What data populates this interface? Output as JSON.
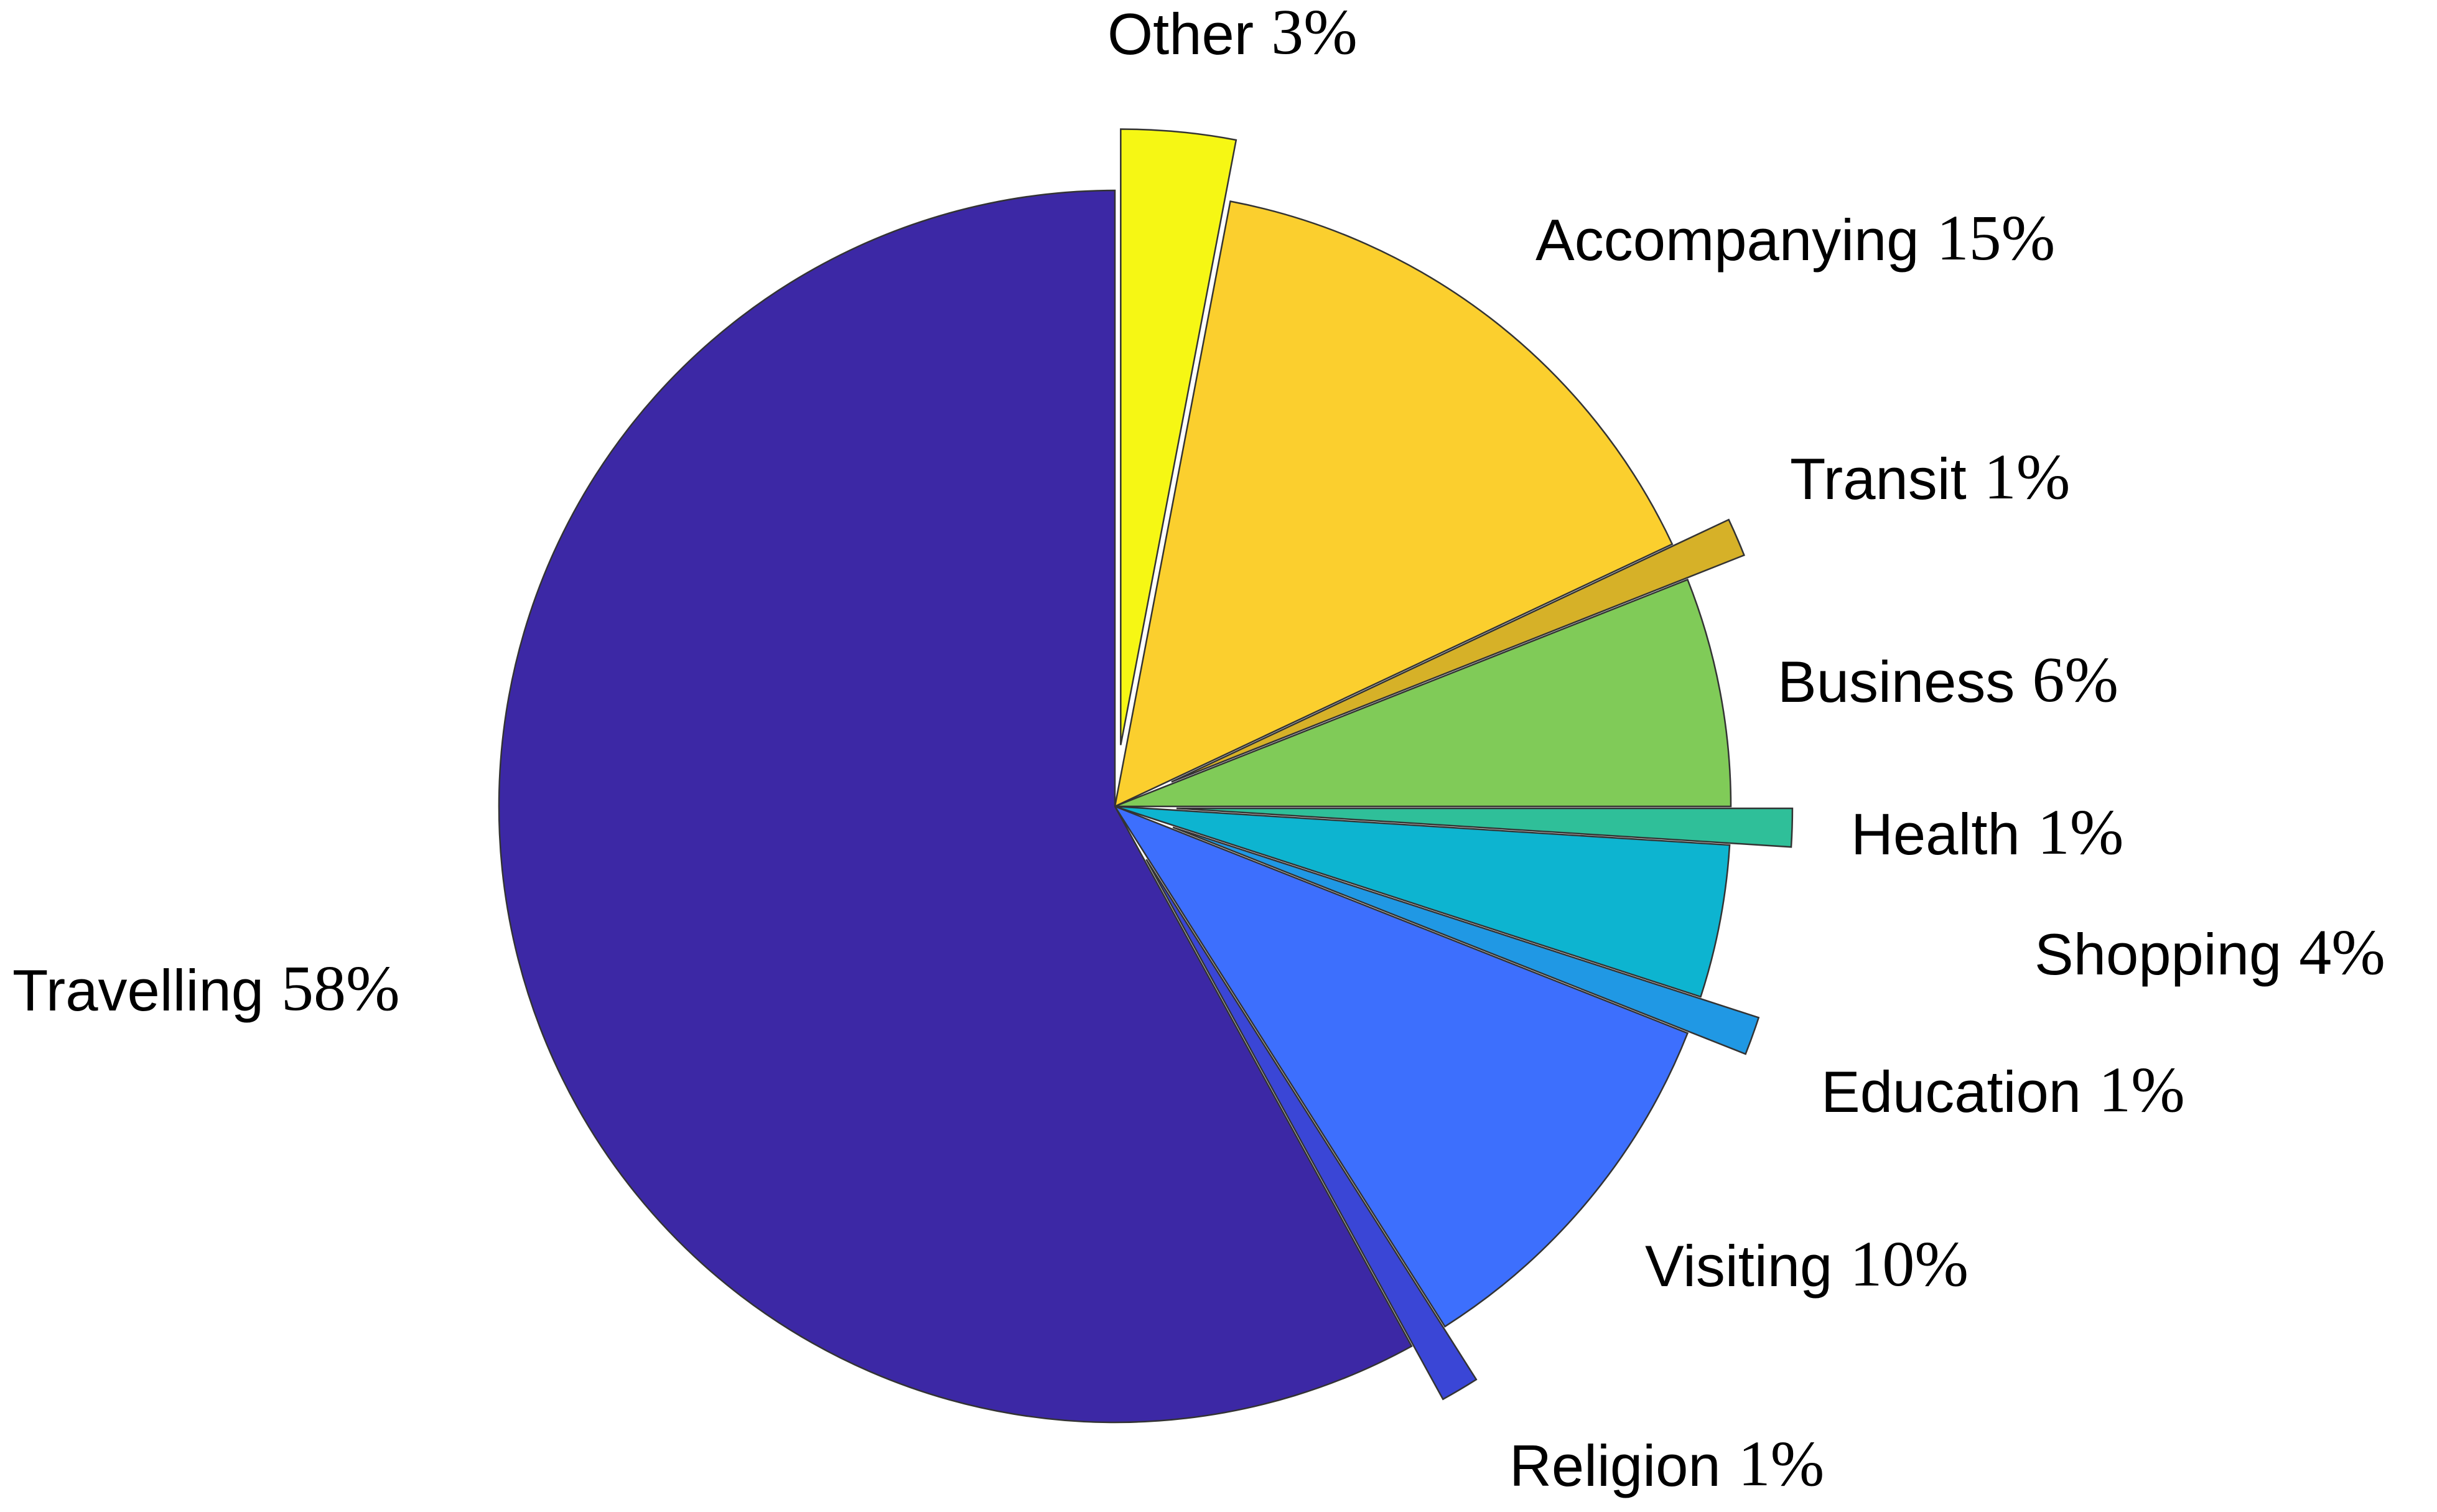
{
  "chart_data": {
    "type": "pie",
    "categories": [
      "Other",
      "Accompanying",
      "Transit",
      "Business",
      "Health",
      "Shopping",
      "Education",
      "Visiting",
      "Religion",
      "Travelling"
    ],
    "values": [
      3,
      15,
      1,
      6,
      1,
      4,
      1,
      10,
      1,
      58
    ],
    "value_labels": [
      "3%",
      "15%",
      "1%",
      "6%",
      "1%",
      "4%",
      "1%",
      "10%",
      "1%",
      "58%"
    ],
    "colors": [
      "#f6f714",
      "#fbcf2e",
      "#d6b128",
      "#80cb58",
      "#2fbf99",
      "#0db4d0",
      "#2098e4",
      "#3d6ffd",
      "#3a46d6",
      "#3c28a5"
    ],
    "explode": [
      true,
      false,
      true,
      false,
      true,
      false,
      true,
      false,
      true,
      false
    ]
  }
}
